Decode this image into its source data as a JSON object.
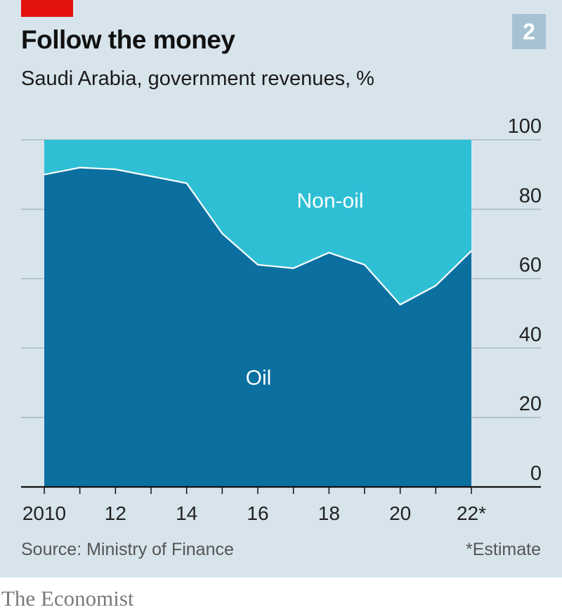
{
  "header": {
    "title": "Follow the money",
    "subtitle": "Saudi Arabia, government revenues, %",
    "badge": "2"
  },
  "footer": {
    "source": "Source: Ministry of Finance",
    "note": "*Estimate",
    "brand": "The Economist"
  },
  "colors": {
    "panel": "#d7e4ec",
    "oil": "#0b6fa0",
    "non_oil": "#2fbfd5",
    "accent_red": "#e3120b",
    "badge": "#a7c3d3"
  },
  "chart_data": {
    "type": "area",
    "stacked": true,
    "x": [
      2010,
      2011,
      2012,
      2013,
      2014,
      2015,
      2016,
      2017,
      2018,
      2019,
      2020,
      2021,
      2022
    ],
    "x_tick_values": [
      2010,
      2012,
      2014,
      2016,
      2018,
      2020,
      2022
    ],
    "x_tick_labels": [
      "2010",
      "12",
      "14",
      "16",
      "18",
      "20",
      "22*"
    ],
    "y_ticks": [
      0,
      20,
      40,
      60,
      80,
      100
    ],
    "ylim": [
      0,
      100
    ],
    "grid": true,
    "y_axis_side": "right",
    "series": [
      {
        "name": "Oil",
        "values": [
          90,
          92,
          91.5,
          89.5,
          87.5,
          73,
          64,
          63,
          67.5,
          64,
          52.5,
          58,
          68
        ]
      },
      {
        "name": "Non-oil",
        "values": [
          10,
          8,
          8.5,
          10.5,
          12.5,
          27,
          36,
          37,
          32.5,
          36,
          47.5,
          42,
          32
        ]
      }
    ]
  }
}
